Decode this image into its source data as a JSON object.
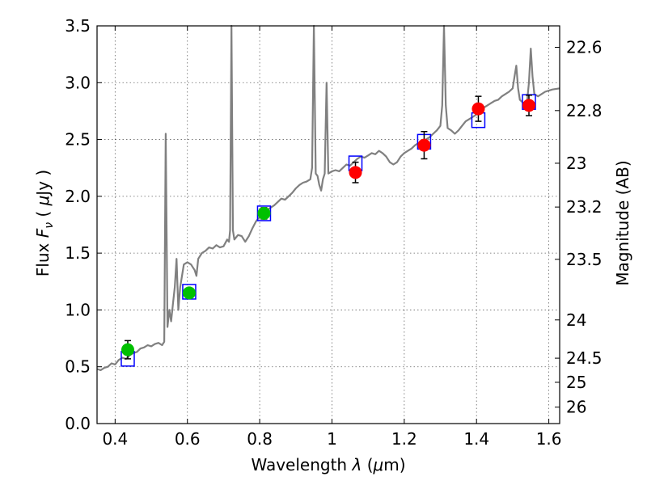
{
  "chart_data": {
    "type": "scatter",
    "title": "",
    "xlabel": "Wavelength",
    "xlabel_symbol": "λ",
    "xlabel_unit_prefix": "(",
    "xlabel_mu": "μ",
    "xlabel_unit_suffix": "m)",
    "ylabel": "Flux",
    "ylabel_symbol": "F",
    "ylabel_subscript": "ν",
    "ylabel_unit_prefix": "(",
    "ylabel_mu": "μ",
    "ylabel_unit_suffix": "Jy )",
    "y2label": "Magnitude (AB)",
    "xlim": [
      0.35,
      1.63
    ],
    "ylim": [
      0.0,
      3.5
    ],
    "grid": true,
    "x_ticks": [
      {
        "value": 0.4,
        "label": "0.4"
      },
      {
        "value": 0.6,
        "label": "0.6"
      },
      {
        "value": 0.8,
        "label": "0.8"
      },
      {
        "value": 1.0,
        "label": "1"
      },
      {
        "value": 1.2,
        "label": "1.2"
      },
      {
        "value": 1.4,
        "label": "1.4"
      },
      {
        "value": 1.6,
        "label": "1.6"
      }
    ],
    "y_ticks": [
      {
        "value": 0.0,
        "label": "0.0"
      },
      {
        "value": 0.5,
        "label": "0.5"
      },
      {
        "value": 1.0,
        "label": "1.0"
      },
      {
        "value": 1.5,
        "label": "1.5"
      },
      {
        "value": 2.0,
        "label": "2.0"
      },
      {
        "value": 2.5,
        "label": "2.5"
      },
      {
        "value": 3.0,
        "label": "3.0"
      },
      {
        "value": 3.5,
        "label": "3.5"
      }
    ],
    "y2_ticks": [
      {
        "value": 22.6,
        "label": "22.6"
      },
      {
        "value": 22.8,
        "label": "22.8"
      },
      {
        "value": 23.0,
        "label": "23"
      },
      {
        "value": 23.2,
        "label": "23.2"
      },
      {
        "value": 23.5,
        "label": "23.5"
      },
      {
        "value": 24.0,
        "label": "24"
      },
      {
        "value": 24.5,
        "label": "24.5"
      },
      {
        "value": 25.0,
        "label": "25"
      },
      {
        "value": 26.0,
        "label": "26"
      }
    ],
    "colors": {
      "spectrum": "#808080",
      "green": "#00c000",
      "red": "#ff0000",
      "box": "#0000ff",
      "error": "#000000"
    },
    "spectrum": [
      [
        0.35,
        0.48
      ],
      [
        0.36,
        0.47
      ],
      [
        0.37,
        0.49
      ],
      [
        0.38,
        0.5
      ],
      [
        0.39,
        0.53
      ],
      [
        0.4,
        0.52
      ],
      [
        0.41,
        0.56
      ],
      [
        0.42,
        0.58
      ],
      [
        0.43,
        0.57
      ],
      [
        0.44,
        0.6
      ],
      [
        0.45,
        0.62
      ],
      [
        0.46,
        0.63
      ],
      [
        0.47,
        0.66
      ],
      [
        0.48,
        0.67
      ],
      [
        0.49,
        0.69
      ],
      [
        0.5,
        0.68
      ],
      [
        0.51,
        0.7
      ],
      [
        0.52,
        0.71
      ],
      [
        0.53,
        0.69
      ],
      [
        0.536,
        0.72
      ],
      [
        0.54,
        2.55
      ],
      [
        0.545,
        0.85
      ],
      [
        0.55,
        1.0
      ],
      [
        0.555,
        0.9
      ],
      [
        0.56,
        1.05
      ],
      [
        0.565,
        1.2
      ],
      [
        0.57,
        1.45
      ],
      [
        0.575,
        1.0
      ],
      [
        0.58,
        1.2
      ],
      [
        0.59,
        1.4
      ],
      [
        0.6,
        1.42
      ],
      [
        0.61,
        1.4
      ],
      [
        0.62,
        1.35
      ],
      [
        0.625,
        1.3
      ],
      [
        0.63,
        1.45
      ],
      [
        0.64,
        1.5
      ],
      [
        0.65,
        1.52
      ],
      [
        0.66,
        1.55
      ],
      [
        0.67,
        1.54
      ],
      [
        0.68,
        1.57
      ],
      [
        0.69,
        1.55
      ],
      [
        0.7,
        1.56
      ],
      [
        0.71,
        1.62
      ],
      [
        0.715,
        1.6
      ],
      [
        0.718,
        1.7
      ],
      [
        0.722,
        3.5
      ],
      [
        0.726,
        1.7
      ],
      [
        0.73,
        1.62
      ],
      [
        0.74,
        1.66
      ],
      [
        0.75,
        1.65
      ],
      [
        0.76,
        1.6
      ],
      [
        0.77,
        1.65
      ],
      [
        0.78,
        1.72
      ],
      [
        0.79,
        1.78
      ],
      [
        0.8,
        1.82
      ],
      [
        0.81,
        1.85
      ],
      [
        0.82,
        1.88
      ],
      [
        0.83,
        1.9
      ],
      [
        0.84,
        1.92
      ],
      [
        0.85,
        1.95
      ],
      [
        0.86,
        1.98
      ],
      [
        0.87,
        1.97
      ],
      [
        0.88,
        2.0
      ],
      [
        0.89,
        2.03
      ],
      [
        0.9,
        2.07
      ],
      [
        0.91,
        2.1
      ],
      [
        0.92,
        2.12
      ],
      [
        0.93,
        2.13
      ],
      [
        0.94,
        2.15
      ],
      [
        0.945,
        2.25
      ],
      [
        0.95,
        3.5
      ],
      [
        0.955,
        2.2
      ],
      [
        0.96,
        2.18
      ],
      [
        0.965,
        2.1
      ],
      [
        0.97,
        2.05
      ],
      [
        0.975,
        2.15
      ],
      [
        0.98,
        2.2
      ],
      [
        0.985,
        3.0
      ],
      [
        0.99,
        2.2
      ],
      [
        1.0,
        2.22
      ],
      [
        1.01,
        2.23
      ],
      [
        1.02,
        2.22
      ],
      [
        1.03,
        2.25
      ],
      [
        1.04,
        2.28
      ],
      [
        1.05,
        2.27
      ],
      [
        1.06,
        2.3
      ],
      [
        1.07,
        2.33
      ],
      [
        1.08,
        2.35
      ],
      [
        1.09,
        2.34
      ],
      [
        1.1,
        2.36
      ],
      [
        1.11,
        2.38
      ],
      [
        1.12,
        2.37
      ],
      [
        1.13,
        2.4
      ],
      [
        1.14,
        2.38
      ],
      [
        1.15,
        2.35
      ],
      [
        1.16,
        2.3
      ],
      [
        1.17,
        2.28
      ],
      [
        1.18,
        2.3
      ],
      [
        1.19,
        2.35
      ],
      [
        1.2,
        2.38
      ],
      [
        1.21,
        2.4
      ],
      [
        1.22,
        2.42
      ],
      [
        1.23,
        2.45
      ],
      [
        1.24,
        2.47
      ],
      [
        1.25,
        2.48
      ],
      [
        1.26,
        2.5
      ],
      [
        1.27,
        2.52
      ],
      [
        1.28,
        2.55
      ],
      [
        1.29,
        2.58
      ],
      [
        1.3,
        2.62
      ],
      [
        1.305,
        2.8
      ],
      [
        1.31,
        3.5
      ],
      [
        1.315,
        2.8
      ],
      [
        1.32,
        2.6
      ],
      [
        1.33,
        2.58
      ],
      [
        1.34,
        2.55
      ],
      [
        1.35,
        2.58
      ],
      [
        1.36,
        2.62
      ],
      [
        1.37,
        2.66
      ],
      [
        1.38,
        2.68
      ],
      [
        1.39,
        2.7
      ],
      [
        1.4,
        2.72
      ],
      [
        1.41,
        2.75
      ],
      [
        1.42,
        2.78
      ],
      [
        1.43,
        2.8
      ],
      [
        1.44,
        2.82
      ],
      [
        1.45,
        2.84
      ],
      [
        1.46,
        2.85
      ],
      [
        1.47,
        2.88
      ],
      [
        1.48,
        2.9
      ],
      [
        1.49,
        2.92
      ],
      [
        1.5,
        2.95
      ],
      [
        1.505,
        3.05
      ],
      [
        1.51,
        3.15
      ],
      [
        1.515,
        2.95
      ],
      [
        1.52,
        2.85
      ],
      [
        1.53,
        2.82
      ],
      [
        1.54,
        2.84
      ],
      [
        1.545,
        3.0
      ],
      [
        1.55,
        3.3
      ],
      [
        1.555,
        3.05
      ],
      [
        1.56,
        2.9
      ],
      [
        1.57,
        2.88
      ],
      [
        1.58,
        2.9
      ],
      [
        1.59,
        2.92
      ],
      [
        1.6,
        2.93
      ],
      [
        1.61,
        2.94
      ],
      [
        1.63,
        2.95
      ]
    ],
    "points": [
      {
        "x": 0.435,
        "y": 0.65,
        "err": 0.08,
        "color": "green",
        "model": 0.57
      },
      {
        "x": 0.605,
        "y": 1.15,
        "err": 0.04,
        "color": "green",
        "model": 1.16
      },
      {
        "x": 0.812,
        "y": 1.85,
        "err": 0.05,
        "color": "green",
        "model": 1.85
      },
      {
        "x": 1.065,
        "y": 2.21,
        "err": 0.09,
        "color": "red",
        "model": 2.29
      },
      {
        "x": 1.255,
        "y": 2.45,
        "err": 0.12,
        "color": "red",
        "model": 2.48
      },
      {
        "x": 1.405,
        "y": 2.77,
        "err": 0.11,
        "color": "red",
        "model": 2.67
      },
      {
        "x": 1.545,
        "y": 2.8,
        "err": 0.09,
        "color": "red",
        "model": 2.83
      }
    ]
  }
}
